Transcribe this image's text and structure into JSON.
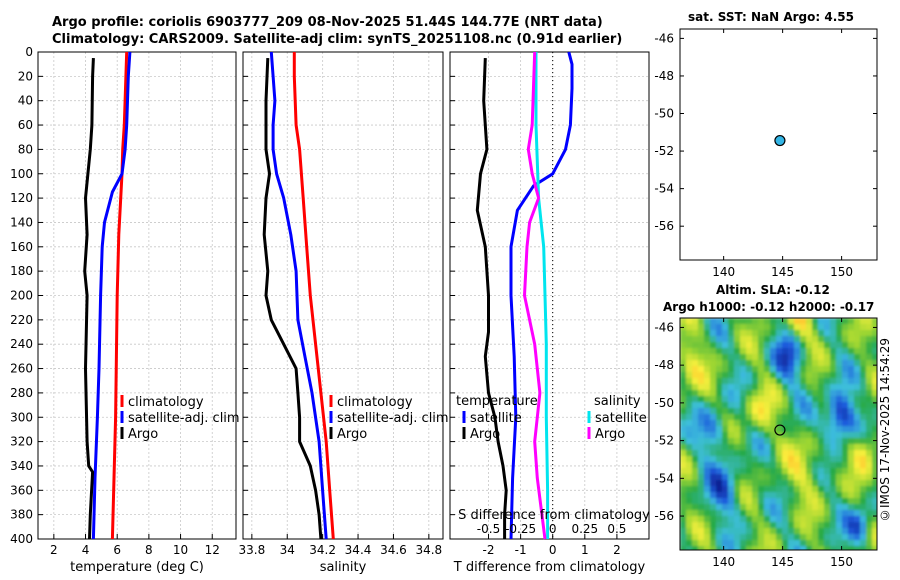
{
  "figure": {
    "title_line1": "Argo profile: coriolis 6903777_209 08-Nov-2025 51.44S 144.77E (NRT data)",
    "title_line2": "Climatology: CARS2009. Satellite-adj clim: synTS_20251108.nc (0.91d earlier)",
    "credit": "©IMOS 17-Nov-2025 14:54:29"
  },
  "colors": {
    "climatology": "#ff0000",
    "satellite_adj": "#0000ff",
    "argo": "#000000",
    "salinity_satellite": "#00e5ee",
    "salinity_argo": "#ff00ff",
    "sst_marker": "#33b5e5"
  },
  "chart_data": [
    {
      "id": "temperature",
      "type": "line",
      "xlabel": "temperature (deg C)",
      "xlim": [
        1,
        13.5
      ],
      "xticks": [
        2,
        4,
        6,
        8,
        10,
        12
      ],
      "ylim": [
        0,
        400
      ],
      "yticks": [
        0,
        20,
        40,
        60,
        80,
        100,
        120,
        140,
        160,
        180,
        200,
        220,
        240,
        260,
        280,
        300,
        320,
        340,
        360,
        380,
        400
      ],
      "y_reversed": true,
      "grid": true,
      "legend": [
        "climatology",
        "satellite-adj. clim",
        "Argo"
      ],
      "series": [
        {
          "name": "climatology",
          "color": "#ff0000",
          "y": [
            0,
            20,
            60,
            80,
            100,
            150,
            200,
            250,
            300,
            350,
            400
          ],
          "x": [
            6.6,
            6.55,
            6.45,
            6.35,
            6.3,
            6.1,
            6.0,
            5.95,
            5.9,
            5.8,
            5.7
          ]
        },
        {
          "name": "satellite-adj. clim",
          "color": "#0000ff",
          "y": [
            0,
            20,
            60,
            80,
            100,
            115,
            140,
            160,
            200,
            260,
            300,
            350,
            400
          ],
          "x": [
            6.8,
            6.7,
            6.6,
            6.5,
            6.3,
            5.7,
            5.2,
            5.05,
            4.95,
            4.85,
            4.75,
            4.6,
            4.5
          ]
        },
        {
          "name": "Argo",
          "color": "#000000",
          "y": [
            5,
            20,
            60,
            80,
            100,
            120,
            150,
            180,
            200,
            230,
            260,
            290,
            320,
            340,
            345,
            380,
            400
          ],
          "x": [
            4.5,
            4.45,
            4.4,
            4.3,
            4.15,
            4.0,
            4.1,
            3.95,
            4.1,
            4.05,
            4.0,
            4.05,
            4.1,
            4.2,
            4.45,
            4.3,
            4.25
          ]
        }
      ]
    },
    {
      "id": "salinity",
      "type": "line",
      "xlabel": "salinity",
      "xlim": [
        33.75,
        34.88
      ],
      "xticks": [
        33.8,
        34,
        34.2,
        34.4,
        34.6,
        34.8
      ],
      "ylim": [
        0,
        400
      ],
      "y_reversed": true,
      "grid": true,
      "legend": [
        "climatology",
        "satellite-adj. clim",
        "Argo"
      ],
      "series": [
        {
          "name": "climatology",
          "color": "#ff0000",
          "y": [
            0,
            20,
            60,
            80,
            120,
            160,
            200,
            240,
            280,
            320,
            360,
            400
          ],
          "x": [
            34.04,
            34.04,
            34.05,
            34.07,
            34.09,
            34.11,
            34.13,
            34.16,
            34.19,
            34.22,
            34.24,
            34.26
          ]
        },
        {
          "name": "satellite-adj. clim",
          "color": "#0000ff",
          "y": [
            0,
            20,
            40,
            60,
            80,
            100,
            120,
            150,
            180,
            220,
            250,
            280,
            320,
            360,
            400
          ],
          "x": [
            33.91,
            33.92,
            33.93,
            33.92,
            33.92,
            33.94,
            33.98,
            34.02,
            34.05,
            34.06,
            34.1,
            34.14,
            34.18,
            34.2,
            34.22
          ]
        },
        {
          "name": "Argo",
          "color": "#000000",
          "y": [
            5,
            40,
            80,
            100,
            120,
            150,
            180,
            200,
            220,
            240,
            260,
            280,
            300,
            320,
            340,
            360,
            380,
            400
          ],
          "x": [
            33.89,
            33.88,
            33.88,
            33.9,
            33.88,
            33.87,
            33.89,
            33.88,
            33.91,
            33.98,
            34.05,
            34.06,
            34.07,
            34.07,
            34.13,
            34.16,
            34.18,
            34.19
          ]
        }
      ]
    },
    {
      "id": "difference",
      "type": "line",
      "xlabel": "T difference from climatology",
      "x2label": "S difference from climatology",
      "xlim": [
        -3.2,
        3.0
      ],
      "xticks": [
        -2,
        -1,
        0,
        1,
        2
      ],
      "x2lim": [
        -0.8,
        0.75
      ],
      "x2ticks": [
        -0.5,
        -0.25,
        0,
        0.25,
        0.5
      ],
      "x2ticklabels": [
        "-0.5",
        "-0.25",
        "0",
        "0.25",
        "0.5"
      ],
      "ylim": [
        0,
        400
      ],
      "y_reversed": true,
      "grid": true,
      "zero_line": "dotted",
      "legend_temperature_title": "temperature",
      "legend_salinity_title": "salinity",
      "legend_temperature": [
        "satellite",
        "Argo"
      ],
      "legend_salinity": [
        "satellite",
        "Argo"
      ],
      "series": [
        {
          "name": "temperature satellite",
          "axis": "T",
          "color": "#0000ff",
          "y": [
            0,
            10,
            30,
            60,
            80,
            100,
            110,
            130,
            160,
            200,
            250,
            300,
            350,
            400
          ],
          "x": [
            0.5,
            0.6,
            0.6,
            0.55,
            0.4,
            0.0,
            -0.6,
            -1.1,
            -1.3,
            -1.3,
            -1.2,
            -1.15,
            -1.25,
            -1.3
          ]
        },
        {
          "name": "temperature Argo",
          "axis": "T",
          "color": "#000000",
          "y": [
            5,
            40,
            80,
            100,
            130,
            160,
            200,
            230,
            250,
            280,
            300,
            320,
            340,
            360,
            380,
            400
          ],
          "x": [
            -2.1,
            -2.15,
            -2.05,
            -2.25,
            -2.35,
            -2.1,
            -2.0,
            -2.0,
            -2.1,
            -2.0,
            -1.8,
            -1.7,
            -1.55,
            -1.45,
            -1.5,
            -1.5
          ]
        },
        {
          "name": "salinity satellite",
          "axis": "S",
          "color": "#00e5ee",
          "y": [
            0,
            60,
            120,
            160,
            200,
            240,
            300,
            360,
            400
          ],
          "x": [
            -0.13,
            -0.13,
            -0.11,
            -0.07,
            -0.06,
            -0.05,
            -0.05,
            -0.04,
            -0.04
          ]
        },
        {
          "name": "salinity Argo",
          "axis": "S",
          "color": "#ff00ff",
          "y": [
            0,
            60,
            80,
            100,
            120,
            140,
            160,
            200,
            240,
            280,
            320,
            350,
            400
          ],
          "x": [
            -0.14,
            -0.16,
            -0.19,
            -0.16,
            -0.11,
            -0.18,
            -0.2,
            -0.22,
            -0.14,
            -0.1,
            -0.14,
            -0.12,
            -0.06
          ]
        }
      ]
    },
    {
      "id": "sst_map",
      "type": "scatter",
      "title": "sat. SST: NaN Argo: 4.55",
      "xlim": [
        136.3,
        153
      ],
      "xticks": [
        140,
        145,
        150
      ],
      "ylim": [
        -57.8,
        -45.5
      ],
      "yticks": [
        -46,
        -48,
        -50,
        -52,
        -54,
        -56
      ],
      "y_ticks_side": "right",
      "points": [
        {
          "x": 144.77,
          "y": -51.44,
          "label": "Argo"
        }
      ]
    },
    {
      "id": "sla_map",
      "type": "heatmap",
      "title_line1": "Altim. SLA: -0.12",
      "title_line2": "Argo h1000: -0.12 h2000: -0.17",
      "xlim": [
        136.3,
        153
      ],
      "xticks": [
        140,
        145,
        150
      ],
      "ylim": [
        -57.8,
        -45.5
      ],
      "yticks": [
        -46,
        -48,
        -50,
        -52,
        -54,
        -56
      ],
      "y_ticks_side": "right",
      "points": [
        {
          "x": 144.77,
          "y": -51.44,
          "label": "Argo"
        }
      ]
    }
  ]
}
